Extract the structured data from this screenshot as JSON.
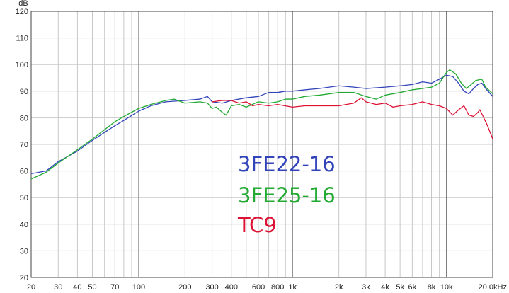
{
  "chart_data": {
    "type": "line",
    "title": "",
    "xlabel": "",
    "ylabel": "",
    "y_unit_label": "dB",
    "x_scale": "log",
    "xlim": [
      20,
      20000
    ],
    "ylim": [
      20,
      120
    ],
    "grid": true,
    "legend_placement": "center",
    "y_ticks": [
      20,
      30,
      40,
      50,
      60,
      70,
      80,
      90,
      100,
      110,
      120
    ],
    "x_ticks": [
      {
        "value": 20,
        "label": "20"
      },
      {
        "value": 30,
        "label": "30"
      },
      {
        "value": 40,
        "label": "40"
      },
      {
        "value": 50,
        "label": "50"
      },
      {
        "value": 70,
        "label": "70"
      },
      {
        "value": 100,
        "label": "100"
      },
      {
        "value": 200,
        "label": "200"
      },
      {
        "value": 300,
        "label": "300"
      },
      {
        "value": 400,
        "label": "400"
      },
      {
        "value": 600,
        "label": "600"
      },
      {
        "value": 800,
        "label": "800"
      },
      {
        "value": 1000,
        "label": "1k"
      },
      {
        "value": 2000,
        "label": "2k"
      },
      {
        "value": 3000,
        "label": "3k"
      },
      {
        "value": 4000,
        "label": "4k"
      },
      {
        "value": 5000,
        "label": "5k"
      },
      {
        "value": 6000,
        "label": "6k"
      },
      {
        "value": 8000,
        "label": "8k"
      },
      {
        "value": 10000,
        "label": "10k"
      },
      {
        "value": 20000,
        "label": "20,0kHz"
      }
    ],
    "series": [
      {
        "name": "3FE22-16",
        "color": "#3344bb",
        "points": [
          [
            20,
            59
          ],
          [
            25,
            60
          ],
          [
            30,
            63.5
          ],
          [
            40,
            67.5
          ],
          [
            50,
            71.5
          ],
          [
            60,
            74.5
          ],
          [
            70,
            77
          ],
          [
            80,
            79
          ],
          [
            100,
            82.5
          ],
          [
            120,
            84.5
          ],
          [
            150,
            86
          ],
          [
            200,
            86.5
          ],
          [
            250,
            87
          ],
          [
            280,
            88
          ],
          [
            300,
            86
          ],
          [
            350,
            85.5
          ],
          [
            400,
            86.5
          ],
          [
            500,
            87.5
          ],
          [
            600,
            88
          ],
          [
            700,
            89.5
          ],
          [
            800,
            89.5
          ],
          [
            900,
            90
          ],
          [
            1000,
            90
          ],
          [
            1200,
            90.5
          ],
          [
            1500,
            91
          ],
          [
            2000,
            92
          ],
          [
            2500,
            91.5
          ],
          [
            3000,
            91
          ],
          [
            4000,
            91.5
          ],
          [
            5000,
            92
          ],
          [
            6000,
            92.5
          ],
          [
            7000,
            93.5
          ],
          [
            8000,
            93
          ],
          [
            9000,
            94.5
          ],
          [
            10000,
            96
          ],
          [
            11000,
            95.5
          ],
          [
            12000,
            93
          ],
          [
            13000,
            90
          ],
          [
            14000,
            89
          ],
          [
            15000,
            91
          ],
          [
            16000,
            92.5
          ],
          [
            17000,
            93
          ],
          [
            18000,
            91
          ],
          [
            20000,
            88
          ]
        ]
      },
      {
        "name": "3FE25-16",
        "color": "#22aa33",
        "points": [
          [
            20,
            57
          ],
          [
            25,
            59.5
          ],
          [
            30,
            63
          ],
          [
            40,
            68
          ],
          [
            50,
            72
          ],
          [
            60,
            75.5
          ],
          [
            70,
            78.5
          ],
          [
            80,
            80.5
          ],
          [
            100,
            83.5
          ],
          [
            120,
            85
          ],
          [
            150,
            86.5
          ],
          [
            170,
            87
          ],
          [
            200,
            85.5
          ],
          [
            250,
            86
          ],
          [
            280,
            85.5
          ],
          [
            300,
            83.5
          ],
          [
            320,
            84
          ],
          [
            350,
            82
          ],
          [
            370,
            81
          ],
          [
            400,
            84.5
          ],
          [
            450,
            85
          ],
          [
            500,
            84
          ],
          [
            600,
            86
          ],
          [
            700,
            85.5
          ],
          [
            800,
            86
          ],
          [
            900,
            87
          ],
          [
            1000,
            87
          ],
          [
            1200,
            88
          ],
          [
            1500,
            88.5
          ],
          [
            2000,
            89.5
          ],
          [
            2500,
            89.5
          ],
          [
            3000,
            88
          ],
          [
            3500,
            87
          ],
          [
            4000,
            88.5
          ],
          [
            5000,
            89.5
          ],
          [
            6000,
            90.5
          ],
          [
            7000,
            91
          ],
          [
            8000,
            91.5
          ],
          [
            9000,
            93
          ],
          [
            10000,
            97
          ],
          [
            10500,
            98
          ],
          [
            11500,
            96.5
          ],
          [
            12500,
            93
          ],
          [
            13500,
            91
          ],
          [
            14500,
            92.5
          ],
          [
            15500,
            94
          ],
          [
            17000,
            94.5
          ],
          [
            18000,
            91.5
          ],
          [
            20000,
            89
          ]
        ]
      },
      {
        "name": "TC9",
        "color": "#dd1133",
        "points": [
          [
            300,
            86
          ],
          [
            350,
            86.5
          ],
          [
            400,
            86.5
          ],
          [
            450,
            85.5
          ],
          [
            500,
            86
          ],
          [
            550,
            84.5
          ],
          [
            600,
            85
          ],
          [
            700,
            84.5
          ],
          [
            800,
            85
          ],
          [
            1000,
            84
          ],
          [
            1200,
            84.5
          ],
          [
            1500,
            84.5
          ],
          [
            2000,
            84.5
          ],
          [
            2500,
            85.5
          ],
          [
            2800,
            87.5
          ],
          [
            3000,
            86
          ],
          [
            3500,
            85
          ],
          [
            4000,
            85.5
          ],
          [
            4500,
            84
          ],
          [
            5000,
            84.5
          ],
          [
            6000,
            85
          ],
          [
            7000,
            86
          ],
          [
            8000,
            85
          ],
          [
            9000,
            84.5
          ],
          [
            10000,
            83.5
          ],
          [
            11000,
            81
          ],
          [
            12000,
            83
          ],
          [
            13000,
            84.5
          ],
          [
            14000,
            81
          ],
          [
            15000,
            80.5
          ],
          [
            16000,
            82
          ],
          [
            16500,
            83
          ],
          [
            17500,
            80
          ],
          [
            18500,
            77
          ],
          [
            20000,
            72
          ]
        ]
      }
    ],
    "legend": [
      {
        "label": "3FE22-16",
        "color": "#3344bb"
      },
      {
        "label": "3FE25-16",
        "color": "#22aa33"
      },
      {
        "label": "TC9",
        "color": "#dd1133"
      }
    ]
  }
}
